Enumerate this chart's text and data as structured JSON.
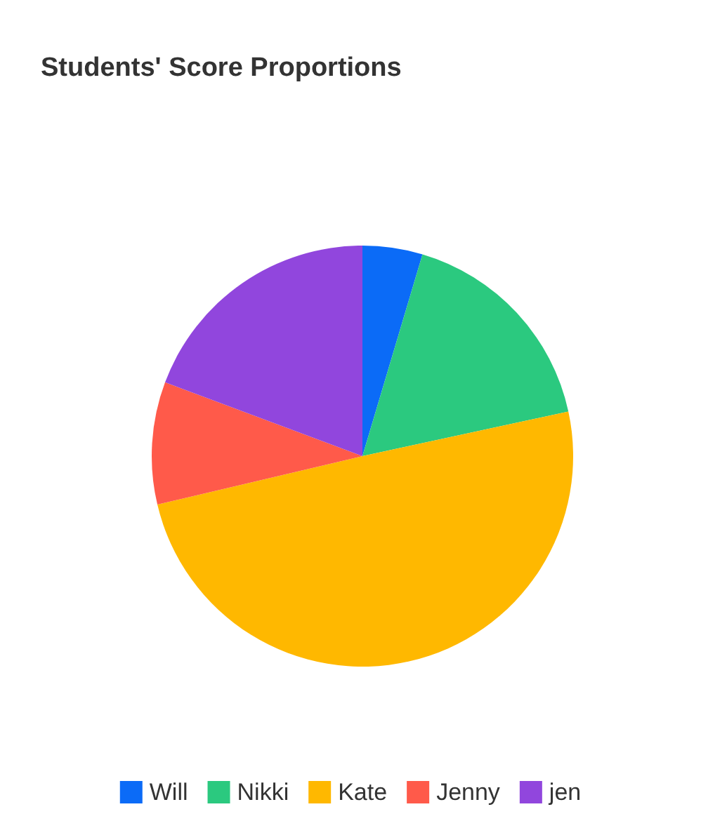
{
  "chart_data": {
    "type": "pie",
    "title": "Students' Score Proportions",
    "categories": [
      "Will",
      "Nikki",
      "Kate",
      "Jenny",
      "jen"
    ],
    "values": [
      4.6,
      17,
      49.7,
      9.4,
      19.3
    ],
    "colors": [
      "#0b6bf7",
      "#2bc97f",
      "#ffb800",
      "#ff5a4a",
      "#9146dd"
    ],
    "legend": "bottom"
  }
}
